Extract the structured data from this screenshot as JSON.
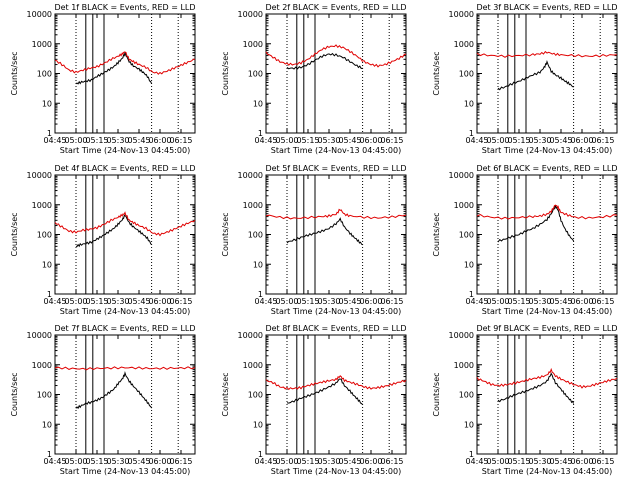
{
  "figure": {
    "ylabel": "Counts/sec",
    "xlabel": "Start Time (24-Nov-13 04:45:00)",
    "x_ticks": [
      "04:45",
      "05:00",
      "05:15",
      "05:30",
      "05:45",
      "06:00",
      "06:15"
    ],
    "y_ticks": [
      "1",
      "10",
      "100",
      "1000",
      "10000"
    ],
    "colors": {
      "events": "#000000",
      "lld": "#e00000",
      "axes": "#000000"
    }
  },
  "chart_data": [
    {
      "type": "line",
      "title": "Det 1f BLACK = Events, RED = LLD",
      "x_unit": "minutes since 04:45",
      "xlim": [
        0,
        100
      ],
      "ylim": [
        1,
        10000
      ],
      "yscale": "log",
      "markers_solid": [
        22,
        27,
        35
      ],
      "markers_dotted": [
        15,
        69,
        88
      ],
      "series": [
        {
          "name": "Events",
          "color": "#000000",
          "x": [
            15,
            18,
            22,
            26,
            30,
            34,
            38,
            42,
            45,
            48,
            50,
            53,
            56,
            60,
            63,
            66,
            69
          ],
          "values": [
            45,
            50,
            55,
            60,
            80,
            100,
            130,
            170,
            230,
            320,
            480,
            250,
            180,
            140,
            110,
            80,
            45
          ]
        },
        {
          "name": "LLD",
          "color": "#e00000",
          "x": [
            0,
            5,
            10,
            15,
            20,
            25,
            30,
            35,
            40,
            45,
            48,
            50,
            53,
            56,
            60,
            65,
            70,
            75,
            80,
            85,
            90,
            95,
            100
          ],
          "values": [
            280,
            200,
            130,
            110,
            130,
            150,
            170,
            220,
            300,
            380,
            450,
            550,
            300,
            250,
            200,
            160,
            110,
            100,
            120,
            150,
            190,
            240,
            300
          ]
        }
      ]
    },
    {
      "type": "line",
      "title": "Det 2f BLACK = Events, RED = LLD",
      "x_unit": "minutes since 04:45",
      "xlim": [
        0,
        100
      ],
      "ylim": [
        1,
        10000
      ],
      "yscale": "log",
      "markers_solid": [
        22,
        27,
        35
      ],
      "markers_dotted": [
        15,
        69,
        88
      ],
      "series": [
        {
          "name": "Events",
          "color": "#000000",
          "x": [
            15,
            20,
            25,
            30,
            35,
            40,
            45,
            50,
            55,
            60,
            65,
            69
          ],
          "values": [
            150,
            150,
            160,
            200,
            280,
            380,
            450,
            420,
            350,
            250,
            180,
            150
          ]
        },
        {
          "name": "LLD",
          "color": "#e00000",
          "x": [
            0,
            5,
            10,
            15,
            20,
            25,
            30,
            35,
            40,
            45,
            50,
            55,
            60,
            65,
            70,
            75,
            80,
            85,
            90,
            95,
            100
          ],
          "values": [
            500,
            350,
            250,
            210,
            200,
            230,
            300,
            450,
            650,
            800,
            850,
            750,
            550,
            380,
            250,
            200,
            180,
            200,
            250,
            320,
            450
          ]
        }
      ]
    },
    {
      "type": "line",
      "title": "Det 3f BLACK = Events, RED = LLD",
      "x_unit": "minutes since 04:45",
      "xlim": [
        0,
        100
      ],
      "ylim": [
        1,
        10000
      ],
      "yscale": "log",
      "markers_solid": [
        22,
        27,
        35
      ],
      "markers_dotted": [
        15,
        69,
        88
      ],
      "series": [
        {
          "name": "Events",
          "color": "#000000",
          "x": [
            15,
            20,
            25,
            30,
            35,
            40,
            45,
            48,
            50,
            53,
            56,
            60,
            63,
            66,
            69
          ],
          "values": [
            30,
            35,
            45,
            55,
            70,
            90,
            110,
            160,
            240,
            120,
            90,
            70,
            55,
            45,
            35
          ]
        },
        {
          "name": "LLD",
          "color": "#e00000",
          "x": [
            0,
            10,
            20,
            30,
            40,
            45,
            50,
            55,
            60,
            70,
            80,
            90,
            100
          ],
          "values": [
            450,
            400,
            380,
            400,
            430,
            460,
            520,
            450,
            420,
            400,
            380,
            400,
            430
          ]
        }
      ]
    },
    {
      "type": "line",
      "title": "Det 4f BLACK = Events, RED = LLD",
      "x_unit": "minutes since 04:45",
      "xlim": [
        0,
        100
      ],
      "ylim": [
        1,
        10000
      ],
      "yscale": "log",
      "markers_solid": [
        22,
        27,
        35
      ],
      "markers_dotted": [
        15,
        69,
        88
      ],
      "series": [
        {
          "name": "Events",
          "color": "#000000",
          "x": [
            15,
            18,
            22,
            26,
            30,
            34,
            38,
            42,
            45,
            48,
            50,
            53,
            56,
            60,
            63,
            66,
            69
          ],
          "values": [
            40,
            45,
            50,
            55,
            70,
            90,
            120,
            160,
            220,
            310,
            450,
            250,
            180,
            130,
            100,
            75,
            45
          ]
        },
        {
          "name": "LLD",
          "color": "#e00000",
          "x": [
            0,
            5,
            10,
            15,
            20,
            25,
            30,
            35,
            40,
            45,
            48,
            50,
            53,
            56,
            60,
            65,
            70,
            75,
            80,
            85,
            90,
            95,
            100
          ],
          "values": [
            250,
            180,
            130,
            120,
            140,
            150,
            170,
            220,
            300,
            380,
            450,
            520,
            300,
            250,
            200,
            160,
            110,
            100,
            120,
            150,
            190,
            240,
            300
          ]
        }
      ]
    },
    {
      "type": "line",
      "title": "Det 5f BLACK = Events, RED = LLD",
      "x_unit": "minutes since 04:45",
      "xlim": [
        0,
        100
      ],
      "ylim": [
        1,
        10000
      ],
      "yscale": "log",
      "markers_solid": [
        22,
        27,
        35
      ],
      "markers_dotted": [
        15,
        69,
        88
      ],
      "series": [
        {
          "name": "Events",
          "color": "#000000",
          "x": [
            15,
            20,
            25,
            30,
            35,
            40,
            45,
            50,
            53,
            56,
            60,
            63,
            66,
            69
          ],
          "values": [
            55,
            65,
            80,
            95,
            110,
            130,
            160,
            230,
            330,
            180,
            110,
            80,
            60,
            45
          ]
        },
        {
          "name": "LLD",
          "color": "#e00000",
          "x": [
            0,
            10,
            20,
            30,
            40,
            45,
            50,
            53,
            56,
            60,
            70,
            80,
            90,
            100
          ],
          "values": [
            450,
            380,
            350,
            370,
            400,
            420,
            480,
            700,
            480,
            420,
            380,
            360,
            390,
            450
          ]
        }
      ]
    },
    {
      "type": "line",
      "title": "Det 6f BLACK = Events, RED = LLD",
      "x_unit": "minutes since 04:45",
      "xlim": [
        0,
        100
      ],
      "ylim": [
        1,
        10000
      ],
      "yscale": "log",
      "markers_solid": [
        22,
        27,
        35
      ],
      "markers_dotted": [
        15,
        69,
        88
      ],
      "series": [
        {
          "name": "Events",
          "color": "#000000",
          "x": [
            15,
            20,
            25,
            30,
            35,
            40,
            45,
            50,
            53,
            56,
            58,
            60,
            63,
            66,
            69
          ],
          "values": [
            60,
            70,
            85,
            100,
            130,
            160,
            220,
            320,
            500,
            900,
            650,
            300,
            150,
            90,
            60
          ]
        },
        {
          "name": "LLD",
          "color": "#e00000",
          "x": [
            0,
            10,
            20,
            30,
            40,
            45,
            50,
            53,
            56,
            58,
            60,
            65,
            70,
            80,
            90,
            100
          ],
          "values": [
            450,
            380,
            350,
            370,
            400,
            420,
            480,
            600,
            1000,
            800,
            550,
            450,
            380,
            360,
            390,
            450
          ]
        }
      ]
    },
    {
      "type": "line",
      "title": "Det 7f BLACK = Events, RED = LLD",
      "x_unit": "minutes since 04:45",
      "xlim": [
        0,
        100
      ],
      "ylim": [
        1,
        10000
      ],
      "yscale": "log",
      "markers_solid": [
        22,
        27,
        35
      ],
      "markers_dotted": [
        15,
        69,
        88
      ],
      "series": [
        {
          "name": "Events",
          "color": "#000000",
          "x": [
            15,
            18,
            22,
            26,
            30,
            34,
            38,
            42,
            45,
            48,
            50,
            53,
            56,
            60,
            63,
            66,
            69
          ],
          "values": [
            35,
            40,
            50,
            55,
            65,
            80,
            110,
            150,
            230,
            330,
            500,
            280,
            190,
            120,
            80,
            55,
            35
          ]
        },
        {
          "name": "LLD",
          "color": "#e00000",
          "x": [
            0,
            10,
            20,
            30,
            40,
            50,
            60,
            70,
            80,
            90,
            100
          ],
          "values": [
            800,
            750,
            720,
            750,
            780,
            800,
            780,
            750,
            760,
            780,
            800
          ]
        }
      ]
    },
    {
      "type": "line",
      "title": "Det 8f BLACK = Events, RED = LLD",
      "x_unit": "minutes since 04:45",
      "xlim": [
        0,
        100
      ],
      "ylim": [
        1,
        10000
      ],
      "yscale": "log",
      "markers_solid": [
        22,
        27,
        35
      ],
      "markers_dotted": [
        15,
        69,
        88
      ],
      "series": [
        {
          "name": "Events",
          "color": "#000000",
          "x": [
            15,
            20,
            25,
            30,
            35,
            40,
            45,
            50,
            53,
            56,
            60,
            63,
            66,
            69
          ],
          "values": [
            50,
            60,
            75,
            90,
            110,
            140,
            180,
            240,
            350,
            200,
            130,
            90,
            65,
            45
          ]
        },
        {
          "name": "LLD",
          "color": "#e00000",
          "x": [
            0,
            5,
            10,
            15,
            20,
            25,
            30,
            35,
            40,
            45,
            50,
            53,
            56,
            60,
            65,
            70,
            75,
            80,
            85,
            90,
            95,
            100
          ],
          "values": [
            300,
            250,
            180,
            160,
            160,
            170,
            200,
            230,
            260,
            290,
            320,
            420,
            300,
            260,
            220,
            180,
            160,
            170,
            190,
            220,
            260,
            300
          ]
        }
      ]
    },
    {
      "type": "line",
      "title": "Det 9f BLACK = Events, RED = LLD",
      "x_unit": "minutes since 04:45",
      "xlim": [
        0,
        100
      ],
      "ylim": [
        1,
        10000
      ],
      "yscale": "log",
      "markers_solid": [
        22,
        27,
        35
      ],
      "markers_dotted": [
        15,
        69,
        88
      ],
      "series": [
        {
          "name": "Events",
          "color": "#000000",
          "x": [
            15,
            20,
            25,
            30,
            35,
            40,
            45,
            50,
            53,
            56,
            60,
            63,
            66,
            69
          ],
          "values": [
            60,
            70,
            90,
            110,
            130,
            160,
            200,
            280,
            500,
            250,
            150,
            100,
            70,
            50
          ]
        },
        {
          "name": "LLD",
          "color": "#e00000",
          "x": [
            0,
            5,
            10,
            15,
            20,
            25,
            30,
            35,
            40,
            45,
            50,
            53,
            56,
            60,
            65,
            70,
            75,
            80,
            85,
            90,
            95,
            100
          ],
          "values": [
            350,
            280,
            220,
            200,
            210,
            230,
            260,
            300,
            340,
            380,
            450,
            650,
            420,
            330,
            260,
            210,
            180,
            190,
            220,
            260,
            300,
            350
          ]
        }
      ]
    }
  ]
}
